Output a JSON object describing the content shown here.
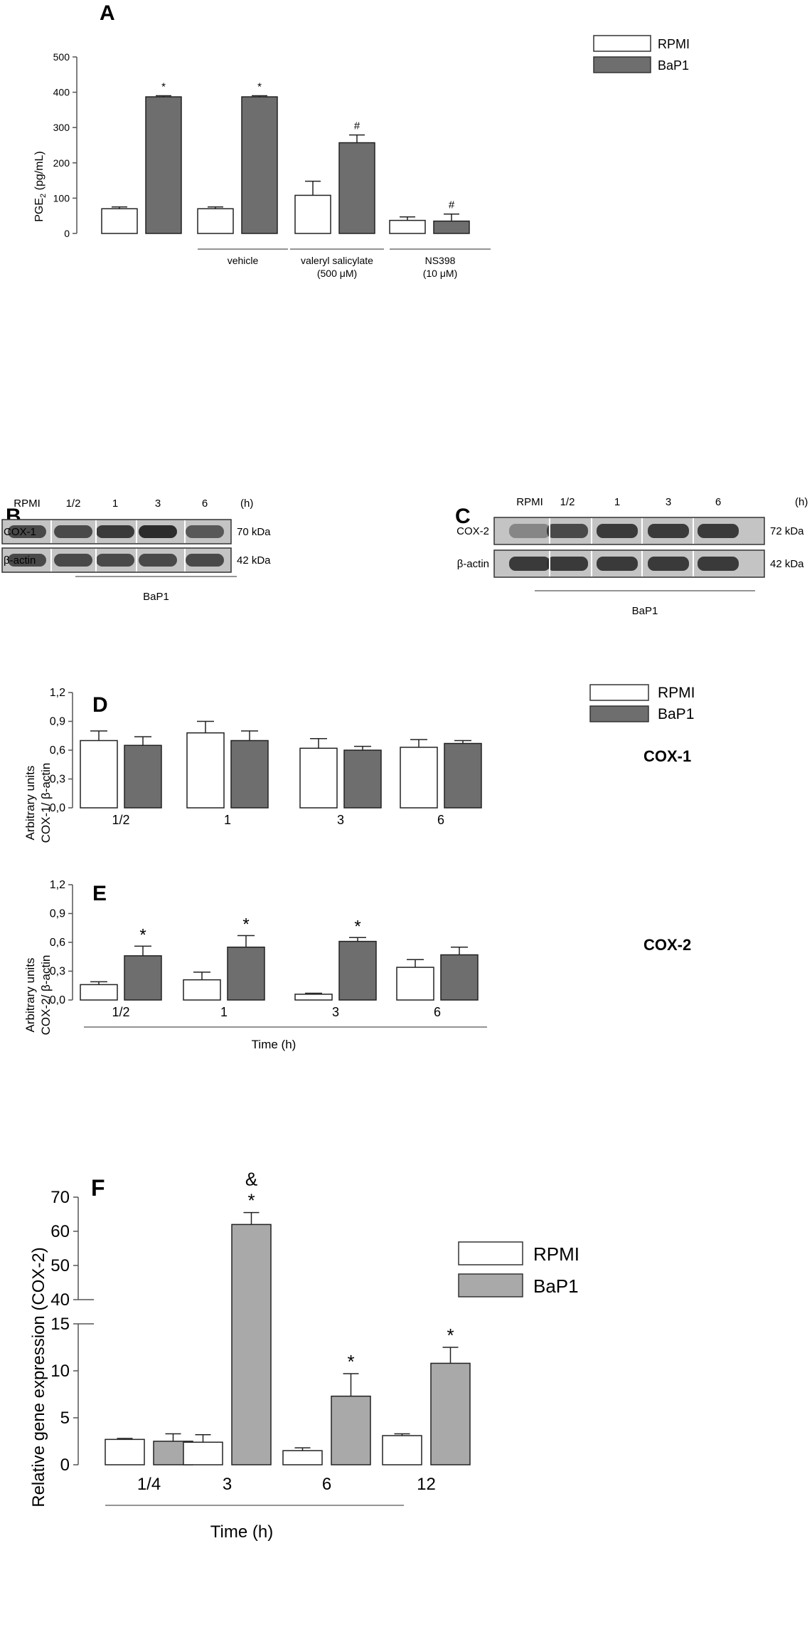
{
  "colors": {
    "white_bar": "#ffffff",
    "dark_bar": "#6e6e6e",
    "light_bar": "#a9a9a9",
    "axis": "#555555",
    "blot_bg": "#c4c4c4",
    "band": "#2b2b2b"
  },
  "panels": {
    "A": "A",
    "B": "B",
    "C": "C",
    "D": "D",
    "E": "E",
    "F": "F"
  },
  "chart_data": [
    {
      "panel": "A",
      "type": "bar",
      "categories": [
        "",
        "vehicle",
        "valeryl salicylate",
        "NS398"
      ],
      "group_labels": [
        [
          "",
          ""
        ],
        [
          "vehicle",
          ""
        ],
        [
          "valeryl salicylate",
          "(500 μM)"
        ],
        [
          "NS398",
          "(10 μM)"
        ]
      ],
      "series": [
        {
          "name": "RPMI",
          "values": [
            70,
            70,
            108,
            37
          ],
          "errors": [
            5,
            5,
            40,
            10
          ]
        },
        {
          "name": "BaP1",
          "values": [
            387,
            387,
            257,
            35
          ],
          "errors": [
            3,
            3,
            22,
            20
          ]
        }
      ],
      "annotations": [
        [
          "",
          "*"
        ],
        [
          "",
          "*"
        ],
        [
          "",
          "#"
        ],
        [
          "",
          "#"
        ]
      ],
      "ylabel": "PGE2 (pg/mL)",
      "ylabel_main": "PGE",
      "ylabel_sub": "2",
      "ylabel_rest": " (pg/mL)",
      "ylim": [
        0,
        500
      ],
      "yticks": [
        "0",
        "100",
        "200",
        "300",
        "400",
        "500"
      ]
    },
    {
      "panel": "D",
      "type": "bar",
      "title": "COX-1",
      "categories": [
        "1/2",
        "1",
        "3",
        "6"
      ],
      "series": [
        {
          "name": "RPMI",
          "values": [
            0.7,
            0.78,
            0.62,
            0.63
          ],
          "errors": [
            0.1,
            0.12,
            0.1,
            0.08
          ]
        },
        {
          "name": "BaP1",
          "values": [
            0.65,
            0.7,
            0.6,
            0.67
          ],
          "errors": [
            0.09,
            0.1,
            0.04,
            0.03
          ]
        }
      ],
      "annotations": [
        [
          "",
          ""
        ],
        [
          "",
          ""
        ],
        [
          "",
          ""
        ],
        [
          "",
          ""
        ]
      ],
      "ylabel_lines": [
        "Arbitrary units",
        "COX-1/ β-actin"
      ],
      "ylim": [
        0,
        1.2
      ],
      "yticks": [
        "0,0",
        "0,3",
        "0,6",
        "0,9",
        "1,2"
      ]
    },
    {
      "panel": "E",
      "type": "bar",
      "title": "COX-2",
      "categories": [
        "1/2",
        "1",
        "3",
        "6"
      ],
      "series": [
        {
          "name": "RPMI",
          "values": [
            0.16,
            0.21,
            0.06,
            0.34
          ],
          "errors": [
            0.03,
            0.08,
            0.01,
            0.08
          ]
        },
        {
          "name": "BaP1",
          "values": [
            0.46,
            0.55,
            0.61,
            0.47
          ],
          "errors": [
            0.1,
            0.12,
            0.04,
            0.08
          ]
        }
      ],
      "annotations": [
        [
          "",
          "*"
        ],
        [
          "",
          "*"
        ],
        [
          "",
          "*"
        ],
        [
          "",
          ""
        ]
      ],
      "ylabel_lines": [
        "Arbitrary units",
        "COX-2/ β-actin"
      ],
      "xlabel": "Time (h)",
      "ylim": [
        0,
        1.2
      ],
      "yticks": [
        "0,0",
        "0,3",
        "0,6",
        "0,9",
        "1,2"
      ]
    },
    {
      "panel": "F",
      "type": "bar",
      "categories": [
        "1/4",
        "3",
        "6",
        "12"
      ],
      "series": [
        {
          "name": "RPMI",
          "values": [
            2.7,
            2.4,
            1.5,
            3.1
          ],
          "errors": [
            0.1,
            0.8,
            0.3,
            0.2
          ]
        },
        {
          "name": "BaP1",
          "values": [
            2.5,
            62,
            7.3,
            10.8
          ],
          "errors": [
            0.8,
            3.5,
            2.4,
            1.7
          ]
        }
      ],
      "annotations": [
        [
          "",
          ""
        ],
        [
          "",
          "&\n*"
        ],
        [
          "",
          "*"
        ],
        [
          "",
          "*"
        ]
      ],
      "ylabel": "Relative gene expression (COX-2)",
      "xlabel": "Time (h)",
      "axis_break": [
        15,
        40
      ],
      "ylim": [
        0,
        70
      ],
      "yticks": [
        "0",
        "5",
        "10",
        "15",
        "40",
        "50",
        "60",
        "70"
      ]
    }
  ],
  "legend": {
    "rpmi": "RPMI",
    "bap1": "BaP1"
  },
  "blots": {
    "B": {
      "lanes": [
        "RPMI",
        "1/2",
        "1",
        "3",
        "6"
      ],
      "unit": "(h)",
      "rows": [
        {
          "name": "COX-1",
          "kda": "70 kDa",
          "intensity": [
            0.8,
            0.8,
            0.9,
            1.0,
            0.7
          ]
        },
        {
          "name": "β-actin",
          "kda": "42 kDa",
          "intensity": [
            0.8,
            0.8,
            0.8,
            0.8,
            0.8
          ]
        }
      ],
      "bracket_label": "BaP1"
    },
    "C": {
      "lanes": [
        "RPMI",
        "1/2",
        "1",
        "3",
        "6"
      ],
      "unit": "(h)",
      "rows": [
        {
          "name": "COX-2",
          "kda": "72 kDa",
          "intensity": [
            0.4,
            0.8,
            0.9,
            0.9,
            0.9
          ]
        },
        {
          "name": "β-actin",
          "kda": "42 kDa",
          "intensity": [
            0.9,
            0.9,
            0.9,
            0.9,
            0.9
          ]
        }
      ],
      "bracket_label": "BaP1"
    }
  }
}
